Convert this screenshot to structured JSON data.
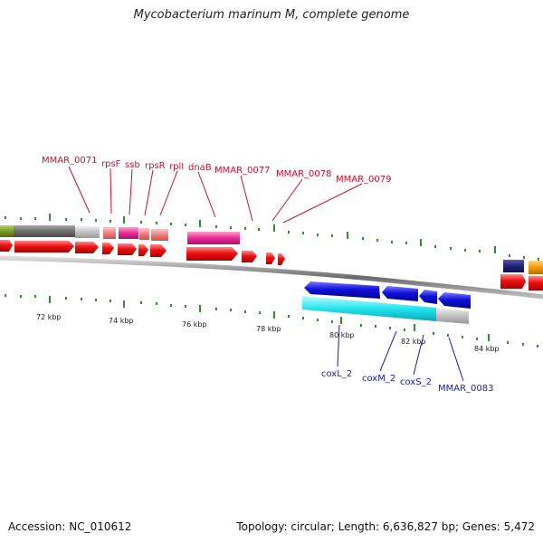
{
  "title": "Mycobacterium marinum M, complete genome",
  "accession": "Accession: NC_010612",
  "summary": "Topology: circular; Length: 6,636,827 bp; Genes: 5,472",
  "scale_labels": [
    "72 kbp",
    "74 kbp",
    "76 kbp",
    "78 kbp",
    "80 kbp",
    "82 kbp",
    "84 kbp"
  ],
  "top_gene_labels": [
    "MMAR_0071",
    "rpsF",
    "ssb",
    "rpsR",
    "rplI",
    "dnaB",
    "MMAR_0077",
    "MMAR_0078",
    "MMAR_0079"
  ],
  "bottom_gene_labels": [
    "coxL_2",
    "coxM_2",
    "coxS_2",
    "MMAR_0083"
  ],
  "colors": {
    "gene_red": "#ee1111",
    "gene_blue": "#1111dd",
    "cyan": "#22e4ee",
    "pink": "#ec2a97",
    "salmon": "#f07f7f",
    "olive": "#7a9a22",
    "dark_gray": "#6e6e6e",
    "light_gray": "#c0c0c0",
    "orange": "#f49b0a",
    "tick_green": "#2f8f2f",
    "label_red": "#c8102e",
    "label_blue": "#1a1aa8"
  }
}
